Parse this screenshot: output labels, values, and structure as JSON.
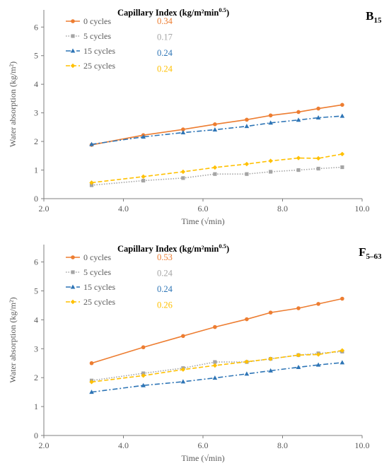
{
  "chart_data": [
    {
      "type": "line",
      "panel_label": "B",
      "panel_label_sub": "15",
      "legend_title": "Capillary Index (kg/m²min",
      "legend_title_sup": "0.5",
      "legend_title_close": ")",
      "xlabel": "Time (√min)",
      "ylabel": "Water absorption (kg/m²)",
      "xlim": [
        2.0,
        10.0
      ],
      "ylim": [
        0,
        6.6
      ],
      "xticks": [
        "2.0",
        "4.0",
        "6.0",
        "8.0",
        "10.0"
      ],
      "yticks": [
        "0",
        "1",
        "2",
        "3",
        "4",
        "5",
        "6"
      ],
      "grid": false,
      "legend_position": "top-left",
      "series": [
        {
          "name": "0 cycles",
          "index": "0.34",
          "color": "#ED7D31",
          "dash": "",
          "marker": "circle",
          "x": [
            3.2,
            4.5,
            5.5,
            6.3,
            7.1,
            7.7,
            8.4,
            8.9,
            9.5
          ],
          "y": [
            1.88,
            2.22,
            2.42,
            2.6,
            2.76,
            2.91,
            3.03,
            3.15,
            3.28
          ]
        },
        {
          "name": "5 cycles",
          "index": "0.17",
          "color": "#A5A5A5",
          "dash": "1.5,2",
          "marker": "square",
          "x": [
            3.2,
            4.5,
            5.5,
            6.3,
            7.1,
            7.7,
            8.4,
            8.9,
            9.5
          ],
          "y": [
            0.47,
            0.63,
            0.72,
            0.86,
            0.86,
            0.94,
            1.0,
            1.05,
            1.1
          ]
        },
        {
          "name": "15 cycles",
          "index": "0.24",
          "color": "#2E75B6",
          "dash": "7,3,2,3",
          "marker": "triangle",
          "x": [
            3.2,
            4.5,
            5.5,
            6.3,
            7.1,
            7.7,
            8.4,
            8.9,
            9.5
          ],
          "y": [
            1.9,
            2.16,
            2.31,
            2.41,
            2.53,
            2.65,
            2.75,
            2.83,
            2.89
          ]
        },
        {
          "name": "25 cycles",
          "index": "0.24",
          "color": "#FFC000",
          "dash": "6,3",
          "marker": "diamond",
          "x": [
            3.2,
            4.5,
            5.5,
            6.3,
            7.1,
            7.7,
            8.4,
            8.9,
            9.5
          ],
          "y": [
            0.56,
            0.77,
            0.94,
            1.09,
            1.21,
            1.32,
            1.42,
            1.41,
            1.56
          ]
        }
      ]
    },
    {
      "type": "line",
      "panel_label": "F",
      "panel_label_sub": "5–63",
      "legend_title": "Capillary Index (kg/m²min",
      "legend_title_sup": "0.5",
      "legend_title_close": ")",
      "xlabel": "Time (√min)",
      "ylabel": "Water absorption (kg/m²)",
      "xlim": [
        2.0,
        10.0
      ],
      "ylim": [
        0,
        6.6
      ],
      "xticks": [
        "2.0",
        "4.0",
        "6.0",
        "8.0",
        "10.0"
      ],
      "yticks": [
        "0",
        "1",
        "2",
        "3",
        "4",
        "5",
        "6"
      ],
      "grid": false,
      "legend_position": "top-left",
      "series": [
        {
          "name": "0 cycles",
          "index": "0.53",
          "color": "#ED7D31",
          "dash": "",
          "marker": "circle",
          "x": [
            3.2,
            4.5,
            5.5,
            6.3,
            7.1,
            7.7,
            8.4,
            8.9,
            9.5
          ],
          "y": [
            2.5,
            3.05,
            3.44,
            3.75,
            4.02,
            4.25,
            4.4,
            4.55,
            4.73
          ]
        },
        {
          "name": "5 cycles",
          "index": "0.24",
          "color": "#A5A5A5",
          "dash": "1.5,2",
          "marker": "square",
          "x": [
            3.2,
            4.5,
            5.5,
            6.3,
            7.1,
            7.7,
            8.4,
            8.9,
            9.5
          ],
          "y": [
            1.9,
            2.15,
            2.33,
            2.54,
            2.54,
            2.65,
            2.78,
            2.84,
            2.9
          ]
        },
        {
          "name": "15 cycles",
          "index": "0.24",
          "color": "#2E75B6",
          "dash": "7,3,2,3",
          "marker": "triangle",
          "x": [
            3.2,
            4.5,
            5.5,
            6.3,
            7.1,
            7.7,
            8.4,
            8.9,
            9.5
          ],
          "y": [
            1.5,
            1.73,
            1.86,
            1.99,
            2.13,
            2.24,
            2.36,
            2.44,
            2.52
          ]
        },
        {
          "name": "25 cycles",
          "index": "0.26",
          "color": "#FFC000",
          "dash": "6,3",
          "marker": "diamond",
          "x": [
            3.2,
            4.5,
            5.5,
            6.3,
            7.1,
            7.7,
            8.4,
            8.9,
            9.5
          ],
          "y": [
            1.85,
            2.07,
            2.28,
            2.42,
            2.55,
            2.65,
            2.78,
            2.8,
            2.94
          ]
        }
      ]
    }
  ]
}
